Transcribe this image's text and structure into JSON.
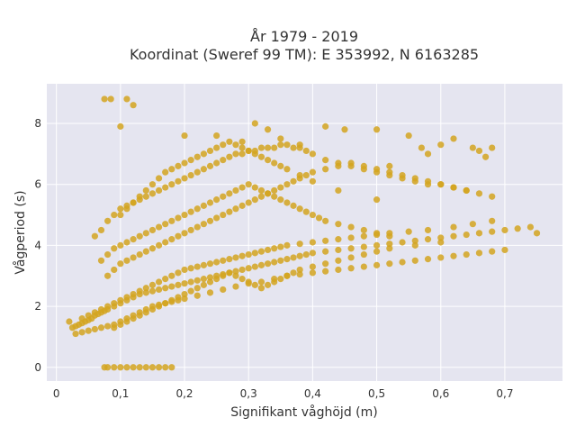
{
  "chart_data": {
    "type": "scatter",
    "title_lines": [
      "År 1979 - 2019",
      "Koordinat (Sweref 99 TM): E 353992, N 6163285"
    ],
    "xlabel": "Signifikant våghöjd (m)",
    "ylabel": "Vågperiod (s)",
    "xlim": [
      -0.015,
      0.79
    ],
    "ylim": [
      -0.45,
      9.3
    ],
    "x_ticks": [
      0,
      0.1,
      0.2,
      0.3,
      0.4,
      0.5,
      0.6,
      0.7
    ],
    "x_tick_labels": [
      "0",
      "0,1",
      "0,2",
      "0,3",
      "0,4",
      "0,5",
      "0,6",
      "0,7"
    ],
    "y_ticks": [
      0,
      2,
      4,
      6,
      8
    ],
    "y_tick_labels": [
      "0",
      "2",
      "4",
      "6",
      "8"
    ],
    "grid": true,
    "legend": "none",
    "colors": {
      "marker": "#d4a520",
      "plot_bg": "#e5e5f0",
      "grid": "#ffffff"
    },
    "series": [
      {
        "x": [
          0.02,
          0.025,
          0.03,
          0.035,
          0.04,
          0.045,
          0.05,
          0.055,
          0.06,
          0.065,
          0.07,
          0.075,
          0.08,
          0.09,
          0.1,
          0.11,
          0.12,
          0.13,
          0.14,
          0.15,
          0.16,
          0.17,
          0.18,
          0.19,
          0.2,
          0.21,
          0.22,
          0.23,
          0.24,
          0.25,
          0.26,
          0.27,
          0.28,
          0.29,
          0.3,
          0.31,
          0.32,
          0.33,
          0.34,
          0.35,
          0.36,
          0.37,
          0.38,
          0.39,
          0.4,
          0.42,
          0.44,
          0.46,
          0.48,
          0.5,
          0.52,
          0.54,
          0.56,
          0.58,
          0.6,
          0.62,
          0.64,
          0.66,
          0.68,
          0.7,
          0.72,
          0.74,
          0.75,
          0.03,
          0.04,
          0.05,
          0.06,
          0.07,
          0.08,
          0.09,
          0.1,
          0.11,
          0.12,
          0.13,
          0.14,
          0.15,
          0.16,
          0.17,
          0.18,
          0.19,
          0.2,
          0.22,
          0.24,
          0.26,
          0.28,
          0.3,
          0.32,
          0.34,
          0.36,
          0.38,
          0.4,
          0.42,
          0.44,
          0.46,
          0.48,
          0.5,
          0.52,
          0.54,
          0.56,
          0.58,
          0.6,
          0.62,
          0.64,
          0.66,
          0.68,
          0.7,
          0.04,
          0.05,
          0.06,
          0.07,
          0.08,
          0.09,
          0.1,
          0.11,
          0.12,
          0.13,
          0.14,
          0.15,
          0.16,
          0.17,
          0.18,
          0.19,
          0.2,
          0.21,
          0.22,
          0.23,
          0.24,
          0.25,
          0.26,
          0.27,
          0.28,
          0.29,
          0.3,
          0.31,
          0.32,
          0.33,
          0.34,
          0.35,
          0.36,
          0.38,
          0.4,
          0.42,
          0.44,
          0.46,
          0.48,
          0.5,
          0.52,
          0.55,
          0.58,
          0.62,
          0.65,
          0.68,
          0.06,
          0.07,
          0.08,
          0.09,
          0.1,
          0.11,
          0.12,
          0.13,
          0.14,
          0.15,
          0.16,
          0.17,
          0.18,
          0.19,
          0.2,
          0.21,
          0.22,
          0.23,
          0.24,
          0.25,
          0.26,
          0.27,
          0.28,
          0.29,
          0.3,
          0.31,
          0.32,
          0.33,
          0.34,
          0.35,
          0.36,
          0.37,
          0.38,
          0.39,
          0.4,
          0.42,
          0.44,
          0.46,
          0.48,
          0.5,
          0.52,
          0.54,
          0.56,
          0.58,
          0.6,
          0.62,
          0.64,
          0.07,
          0.08,
          0.09,
          0.1,
          0.11,
          0.12,
          0.13,
          0.14,
          0.15,
          0.16,
          0.17,
          0.18,
          0.19,
          0.2,
          0.21,
          0.22,
          0.23,
          0.24,
          0.25,
          0.26,
          0.27,
          0.28,
          0.29,
          0.3,
          0.31,
          0.32,
          0.33,
          0.34,
          0.35,
          0.36,
          0.37,
          0.38,
          0.39,
          0.4,
          0.41,
          0.42,
          0.44,
          0.46,
          0.48,
          0.5,
          0.52,
          0.08,
          0.09,
          0.1,
          0.11,
          0.12,
          0.13,
          0.14,
          0.15,
          0.16,
          0.17,
          0.18,
          0.19,
          0.2,
          0.21,
          0.22,
          0.23,
          0.24,
          0.25,
          0.26,
          0.27,
          0.28,
          0.29,
          0.3,
          0.31,
          0.32,
          0.33,
          0.34,
          0.35,
          0.36,
          0.37,
          0.38,
          0.39,
          0.4,
          0.42,
          0.44,
          0.46,
          0.48,
          0.5,
          0.52,
          0.54,
          0.56,
          0.58,
          0.6,
          0.62,
          0.64,
          0.66,
          0.68,
          0.09,
          0.1,
          0.11,
          0.12,
          0.13,
          0.14,
          0.15,
          0.16,
          0.17,
          0.18,
          0.19,
          0.2,
          0.21,
          0.22,
          0.23,
          0.24,
          0.25,
          0.26,
          0.27,
          0.28,
          0.29,
          0.3,
          0.31,
          0.32,
          0.33,
          0.34,
          0.35,
          0.36,
          0.37,
          0.38,
          0.4,
          0.42,
          0.44,
          0.46,
          0.48,
          0.5,
          0.52,
          0.56,
          0.6,
          0.1,
          0.11,
          0.12,
          0.13,
          0.14,
          0.15,
          0.16,
          0.17,
          0.18,
          0.19,
          0.2,
          0.21,
          0.22,
          0.23,
          0.24,
          0.25,
          0.26,
          0.27,
          0.28,
          0.29,
          0.3,
          0.31,
          0.32,
          0.33,
          0.34,
          0.35,
          0.36,
          0.38,
          0.4,
          0.44,
          0.5,
          0.075,
          0.085,
          0.11,
          0.12,
          0.1,
          0.2,
          0.25,
          0.29,
          0.31,
          0.33,
          0.35,
          0.38,
          0.42,
          0.45,
          0.5,
          0.55,
          0.65,
          0.66,
          0.67,
          0.68,
          0.62,
          0.6,
          0.58,
          0.57,
          0.52,
          0.075,
          0.08,
          0.09,
          0.1,
          0.11,
          0.12,
          0.13,
          0.14,
          0.15,
          0.16,
          0.17,
          0.18
        ],
        "y": [
          1.5,
          1.3,
          1.35,
          1.4,
          1.45,
          1.5,
          1.55,
          1.6,
          1.7,
          1.75,
          1.8,
          1.85,
          1.9,
          2.0,
          2.1,
          2.2,
          2.3,
          2.4,
          2.45,
          2.5,
          2.55,
          2.6,
          2.65,
          2.7,
          2.75,
          2.8,
          2.85,
          2.9,
          2.95,
          3.0,
          3.05,
          3.1,
          3.15,
          3.2,
          3.25,
          3.3,
          3.35,
          3.4,
          3.45,
          3.5,
          3.55,
          3.6,
          3.65,
          3.7,
          3.75,
          3.8,
          3.85,
          3.9,
          3.95,
          4.0,
          4.05,
          4.1,
          4.15,
          4.2,
          4.25,
          4.3,
          4.35,
          4.4,
          4.45,
          4.5,
          4.55,
          4.6,
          4.4,
          1.1,
          1.15,
          1.2,
          1.25,
          1.3,
          1.35,
          1.4,
          1.5,
          1.6,
          1.7,
          1.8,
          1.9,
          2.0,
          2.05,
          2.1,
          2.15,
          2.2,
          2.25,
          2.35,
          2.45,
          2.55,
          2.65,
          2.75,
          2.8,
          2.9,
          3.0,
          3.05,
          3.1,
          3.15,
          3.2,
          3.25,
          3.3,
          3.35,
          3.4,
          3.45,
          3.5,
          3.55,
          3.6,
          3.65,
          3.7,
          3.75,
          3.8,
          3.85,
          1.6,
          1.7,
          1.8,
          1.9,
          2.0,
          2.1,
          2.2,
          2.3,
          2.4,
          2.5,
          2.6,
          2.7,
          2.8,
          2.9,
          3.0,
          3.1,
          3.2,
          3.25,
          3.3,
          3.35,
          3.4,
          3.45,
          3.5,
          3.55,
          3.6,
          3.65,
          3.7,
          3.75,
          3.8,
          3.85,
          3.9,
          3.95,
          4.0,
          4.05,
          4.1,
          4.15,
          4.2,
          4.25,
          4.3,
          4.35,
          4.4,
          4.45,
          4.5,
          4.6,
          4.7,
          4.8,
          4.3,
          4.5,
          4.8,
          5.0,
          5.2,
          5.3,
          5.4,
          5.5,
          5.6,
          5.7,
          5.8,
          5.9,
          6.0,
          6.1,
          6.2,
          6.3,
          6.4,
          6.5,
          6.6,
          6.7,
          6.8,
          6.9,
          7.0,
          7.0,
          7.1,
          7.1,
          7.2,
          7.2,
          7.2,
          7.3,
          7.3,
          7.2,
          7.2,
          7.1,
          7.0,
          6.8,
          6.7,
          6.6,
          6.5,
          6.4,
          6.3,
          6.2,
          6.1,
          6.0,
          6.0,
          5.9,
          5.8,
          3.5,
          3.7,
          3.9,
          4.0,
          4.1,
          4.2,
          4.3,
          4.4,
          4.5,
          4.6,
          4.7,
          4.8,
          4.9,
          5.0,
          5.1,
          5.2,
          5.3,
          5.4,
          5.5,
          5.6,
          5.7,
          5.8,
          5.9,
          6.0,
          5.9,
          5.8,
          5.7,
          5.6,
          5.5,
          5.4,
          5.3,
          5.2,
          5.1,
          5.0,
          4.9,
          4.8,
          4.7,
          4.6,
          4.5,
          4.4,
          4.3,
          3.0,
          3.2,
          3.4,
          3.5,
          3.6,
          3.7,
          3.8,
          3.9,
          4.0,
          4.1,
          4.2,
          4.3,
          4.4,
          4.5,
          4.6,
          4.7,
          4.8,
          4.9,
          5.0,
          5.1,
          5.2,
          5.3,
          5.4,
          5.5,
          5.6,
          5.7,
          5.8,
          5.9,
          6.0,
          6.1,
          6.2,
          6.3,
          6.4,
          6.5,
          6.6,
          6.7,
          6.6,
          6.5,
          6.4,
          6.3,
          6.2,
          6.1,
          6.0,
          5.9,
          5.8,
          5.7,
          5.6,
          1.3,
          1.4,
          1.5,
          1.6,
          1.7,
          1.8,
          1.9,
          2.0,
          2.1,
          2.2,
          2.3,
          2.4,
          2.5,
          2.6,
          2.7,
          2.8,
          2.9,
          3.0,
          3.1,
          3.0,
          2.9,
          2.8,
          2.7,
          2.6,
          2.7,
          2.8,
          2.9,
          3.0,
          3.1,
          3.2,
          3.3,
          3.4,
          3.5,
          3.6,
          3.7,
          3.8,
          3.9,
          4.0,
          4.1,
          5.0,
          5.2,
          5.4,
          5.6,
          5.8,
          6.0,
          6.2,
          6.4,
          6.5,
          6.6,
          6.7,
          6.8,
          6.9,
          7.0,
          7.1,
          7.2,
          7.3,
          7.4,
          7.3,
          7.2,
          7.1,
          7.0,
          6.9,
          6.8,
          6.7,
          6.6,
          6.5,
          6.3,
          6.1,
          5.8,
          5.5,
          8.8,
          8.8,
          8.8,
          8.6,
          7.9,
          7.6,
          7.6,
          7.4,
          8.0,
          7.8,
          7.5,
          7.3,
          7.9,
          7.8,
          7.8,
          7.6,
          7.2,
          7.1,
          6.9,
          7.2,
          7.5,
          7.3,
          7.0,
          7.2,
          6.6,
          0,
          0,
          0,
          0,
          0,
          0,
          0,
          0,
          0,
          0,
          0,
          0
        ]
      }
    ]
  }
}
